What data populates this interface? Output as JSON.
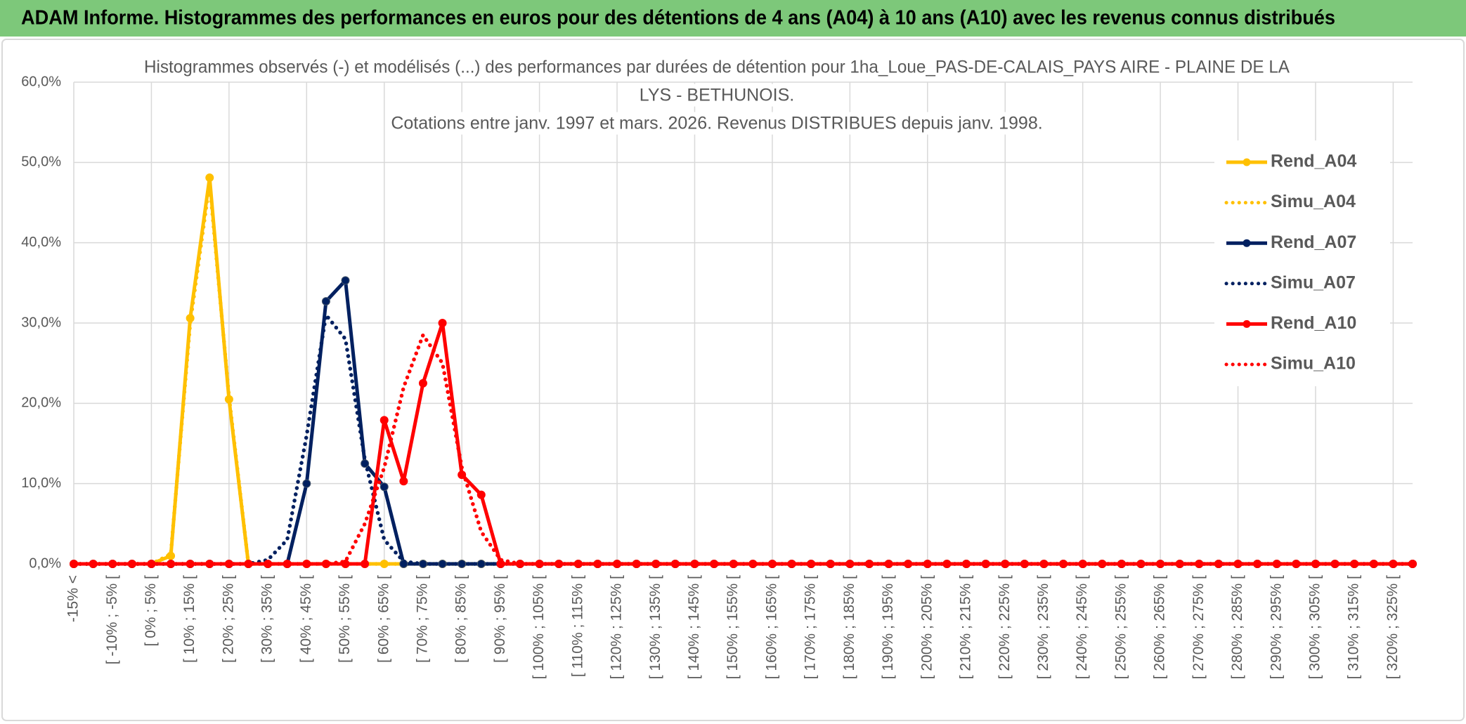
{
  "chart_data": {
    "type": "line",
    "header": "ADAM Informe. Histogrammes des performances en euros pour des détentions de 4 ans (A04) à 10 ans (A10) avec les revenus connus distribués",
    "title": [
      "Histogrammes observés (-) et modélisés (...) des performances par durées de détention pour 1ha_Loue_PAS-DE-CALAIS_PAYS AIRE - PLAINE DE LA",
      "LYS - BETHUNOIS.",
      "Cotations entre janv. 1997 et mars. 2026. Revenus DISTRIBUES depuis janv. 1998."
    ],
    "categories": [
      "-15% <",
      null,
      "[ -10% ; -5% [",
      null,
      "[ 0% ; 5% [",
      null,
      "[ 10% ; 15% [",
      null,
      "[ 20% ; 25% [",
      null,
      "[ 30% ; 35% [",
      null,
      "[ 40% ; 45% [",
      null,
      "[ 50% ; 55% [",
      null,
      "[ 60% ; 65% [",
      null,
      "[ 70% ; 75% [",
      null,
      "[ 80% ; 85% [",
      null,
      "[ 90% ; 95% [",
      null,
      "[ 100% ; 105% [",
      null,
      "[ 110% ; 115% [",
      null,
      "[ 120% ; 125% [",
      null,
      "[ 130% ; 135% [",
      null,
      "[ 140% ; 145% [",
      null,
      "[ 150% ; 155% [",
      null,
      "[ 160% ; 165% [",
      null,
      "[ 170% ; 175% [",
      null,
      "[ 180% ; 185% [",
      null,
      "[ 190% ; 195% [",
      null,
      "[ 200% ; 205% [",
      null,
      "[ 210% ; 215% [",
      null,
      "[ 220% ; 225% [",
      null,
      "[ 230% ; 235% [",
      null,
      "[ 240% ; 245% [",
      null,
      "[ 250% ; 255% [",
      null,
      "[ 260% ; 265% [",
      null,
      "[ 270% ; 275% [",
      null,
      "[ 280% ; 285% [",
      null,
      "[ 290% ; 295% [",
      null,
      "[ 300% ; 305% [",
      null,
      "[ 310% ; 315% [",
      null,
      "[ 320% ; 325% [",
      null
    ],
    "series": [
      {
        "name": "Rend_A04",
        "color": "#FFC000",
        "style": "solid",
        "markers": true,
        "values": [
          0,
          0,
          0,
          0,
          0,
          1.0,
          30.6,
          48.1,
          20.5,
          0,
          0,
          0,
          0,
          0,
          0,
          0,
          0,
          0,
          0,
          0,
          0,
          0,
          0,
          0,
          0,
          0,
          0,
          0,
          0,
          0,
          0,
          0,
          0,
          0,
          0,
          0,
          0,
          0,
          0,
          0,
          0,
          0,
          0,
          0,
          0,
          0,
          0,
          0,
          0,
          0,
          0,
          0,
          0,
          0,
          0,
          0,
          0,
          0,
          0,
          0,
          0,
          0,
          0,
          0,
          0,
          0,
          0,
          0,
          0,
          0
        ]
      },
      {
        "name": "Simu_A04",
        "color": "#FFC000",
        "style": "dotted",
        "markers": false,
        "values": [
          0,
          0,
          0,
          0,
          0,
          1.2,
          30.0,
          47.5,
          20.8,
          0,
          0,
          0,
          0,
          0,
          0,
          0,
          0,
          0,
          0,
          0,
          0,
          0,
          0,
          0,
          0,
          0,
          0,
          0,
          0,
          0,
          0,
          0,
          0,
          0,
          0,
          0,
          0,
          0,
          0,
          0,
          0,
          0,
          0,
          0,
          0,
          0,
          0,
          0,
          0,
          0,
          0,
          0,
          0,
          0,
          0,
          0,
          0,
          0,
          0,
          0,
          0,
          0,
          0,
          0,
          0,
          0,
          0,
          0,
          0,
          0
        ]
      },
      {
        "name": "Rend_A07",
        "color": "#002060",
        "style": "solid",
        "markers": true,
        "values": [
          0,
          0,
          0,
          0,
          0,
          0,
          0,
          0,
          0,
          0,
          0,
          0,
          10.0,
          32.7,
          35.3,
          12.5,
          9.6,
          0,
          0,
          0,
          0,
          0,
          0,
          0,
          0,
          0,
          0,
          0,
          0,
          0,
          0,
          0,
          0,
          0,
          0,
          0,
          0,
          0,
          0,
          0,
          0,
          0,
          0,
          0,
          0,
          0,
          0,
          0,
          0,
          0,
          0,
          0,
          0,
          0,
          0,
          0,
          0,
          0,
          0,
          0,
          0,
          0,
          0,
          0,
          0,
          0,
          0,
          0,
          0,
          0
        ]
      },
      {
        "name": "Simu_A07",
        "color": "#002060",
        "style": "dotted",
        "markers": false,
        "values": [
          0,
          0,
          0,
          0,
          0,
          0,
          0,
          0,
          0,
          0,
          0.5,
          3.0,
          16.0,
          31.0,
          28.0,
          13.0,
          3.0,
          0.3,
          0,
          0,
          0,
          0,
          0,
          0,
          0,
          0,
          0,
          0,
          0,
          0,
          0,
          0,
          0,
          0,
          0,
          0,
          0,
          0,
          0,
          0,
          0,
          0,
          0,
          0,
          0,
          0,
          0,
          0,
          0,
          0,
          0,
          0,
          0,
          0,
          0,
          0,
          0,
          0,
          0,
          0,
          0,
          0,
          0,
          0,
          0,
          0,
          0,
          0,
          0,
          0
        ]
      },
      {
        "name": "Rend_A10",
        "color": "#FF0000",
        "style": "solid",
        "markers": true,
        "values": [
          0,
          0,
          0,
          0,
          0,
          0,
          0,
          0,
          0,
          0,
          0,
          0,
          0,
          0,
          0,
          0,
          17.9,
          10.3,
          22.5,
          30.0,
          11.1,
          8.6,
          0,
          0,
          0,
          0,
          0,
          0,
          0,
          0,
          0,
          0,
          0,
          0,
          0,
          0,
          0,
          0,
          0,
          0,
          0,
          0,
          0,
          0,
          0,
          0,
          0,
          0,
          0,
          0,
          0,
          0,
          0,
          0,
          0,
          0,
          0,
          0,
          0,
          0,
          0,
          0,
          0,
          0,
          0,
          0,
          0,
          0,
          0,
          0
        ]
      },
      {
        "name": "Simu_A10",
        "color": "#FF0000",
        "style": "dotted",
        "markers": false,
        "values": [
          0,
          0,
          0,
          0,
          0,
          0,
          0,
          0,
          0,
          0,
          0,
          0,
          0,
          0,
          0.3,
          5.0,
          12.0,
          22.0,
          28.5,
          25.0,
          12.0,
          4.0,
          0.5,
          0,
          0,
          0,
          0,
          0,
          0,
          0,
          0,
          0,
          0,
          0,
          0,
          0,
          0,
          0,
          0,
          0,
          0,
          0,
          0,
          0,
          0,
          0,
          0,
          0,
          0,
          0,
          0,
          0,
          0,
          0,
          0,
          0,
          0,
          0,
          0,
          0,
          0,
          0,
          0,
          0,
          0,
          0,
          0,
          0,
          0,
          0
        ]
      }
    ],
    "ylim": [
      0,
      60
    ],
    "yticks": [
      {
        "value": 0,
        "label": "0,0%"
      },
      {
        "value": 10,
        "label": "10,0%"
      },
      {
        "value": 20,
        "label": "20,0%"
      },
      {
        "value": 30,
        "label": "30,0%"
      },
      {
        "value": 40,
        "label": "40,0%"
      },
      {
        "value": 50,
        "label": "50,0%"
      },
      {
        "value": 60,
        "label": "60,0%"
      }
    ],
    "grid": true,
    "legend": "right"
  }
}
